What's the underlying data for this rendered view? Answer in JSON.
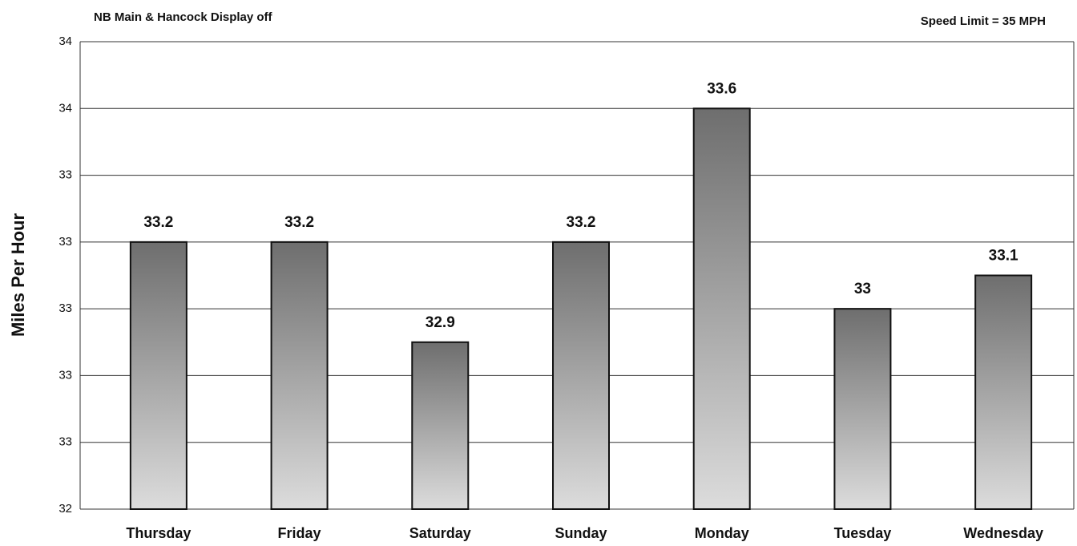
{
  "chart_data": {
    "type": "bar",
    "title": "NB Main & Hancock Display off",
    "annotation": "Speed Limit = 35 MPH",
    "y_label": "Miles Per Hour",
    "categories": [
      "Thursday",
      "Friday",
      "Saturday",
      "Sunday",
      "Monday",
      "Tuesday",
      "Wednesday"
    ],
    "values": [
      33.2,
      33.2,
      32.9,
      33.2,
      33.6,
      33,
      33.1
    ],
    "color": "#7a7a7a",
    "ylim": [
      32.4,
      33.8
    ],
    "yticks": [
      {
        "value": 32.4,
        "label": "32"
      },
      {
        "value": 32.6,
        "label": "33"
      },
      {
        "value": 32.8,
        "label": "33"
      },
      {
        "value": 33.0,
        "label": "33"
      },
      {
        "value": 33.2,
        "label": "33"
      },
      {
        "value": 33.4,
        "label": "33"
      },
      {
        "value": 33.6,
        "label": "34"
      },
      {
        "value": 33.8,
        "label": "34"
      }
    ],
    "grid": true
  }
}
